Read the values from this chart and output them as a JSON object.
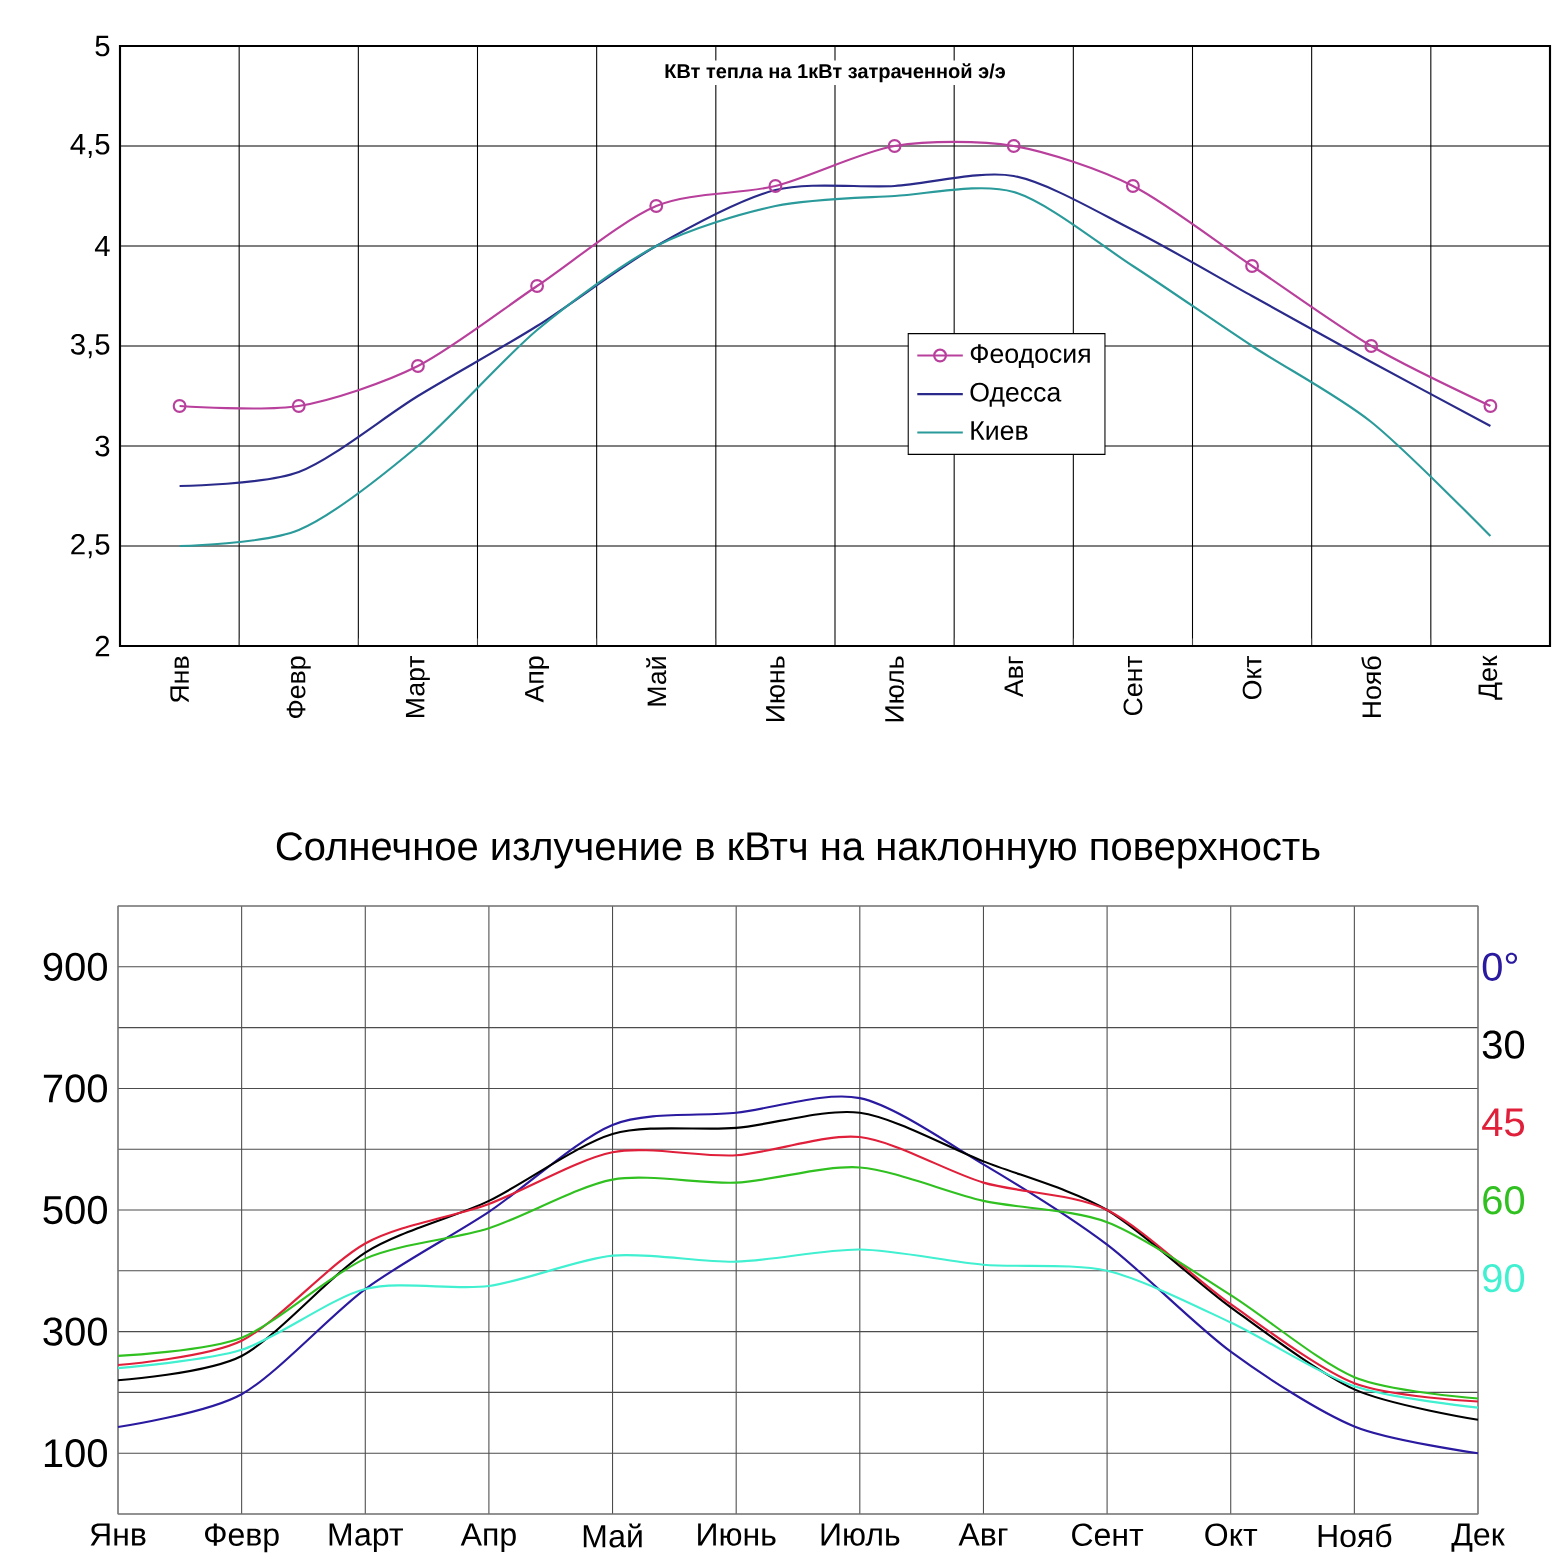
{
  "chart_data": [
    {
      "type": "line",
      "title": "КВт тепла на 1кВт затраченной э/э",
      "categories": [
        "Янв",
        "Февр",
        "Март",
        "Апр",
        "Май",
        "Июнь",
        "Июль",
        "Авг",
        "Сент",
        "Окт",
        "Нояб",
        "Дек"
      ],
      "ylim": [
        2,
        5
      ],
      "yticks": [
        2,
        {
          "value": 2.5,
          "label": "2,5"
        },
        3,
        {
          "value": 3.5,
          "label": "3,5"
        },
        4,
        {
          "value": 4.5,
          "label": "4,5"
        },
        5
      ],
      "grid": true,
      "legend": "center",
      "line_style": "solid",
      "series": [
        {
          "name": "Феодосия",
          "color": "#b8409c",
          "marker": "circle",
          "values": [
            3.2,
            3.2,
            3.4,
            3.8,
            4.2,
            4.3,
            4.5,
            4.5,
            4.3,
            3.9,
            3.5,
            3.2
          ]
        },
        {
          "name": "Одесса",
          "color": "#2a2a8a",
          "values": [
            2.8,
            2.87,
            3.25,
            3.6,
            4.0,
            4.28,
            4.3,
            4.35,
            4.08,
            3.75,
            3.42,
            3.1
          ]
        },
        {
          "name": "Киев",
          "color": "#2a9a9a",
          "values": [
            2.5,
            2.58,
            3.0,
            3.58,
            4.0,
            4.2,
            4.25,
            4.27,
            3.9,
            3.5,
            3.12,
            2.55
          ]
        }
      ]
    },
    {
      "type": "line",
      "title": "Солнечное излучение в кВтч на наклонную поверхность",
      "categories": [
        "Янв",
        "Февр",
        "Март",
        "Апр",
        "Май",
        "Июнь",
        "Июль",
        "Авг",
        "Сент",
        "Окт",
        "Нояб",
        "Дек"
      ],
      "ylim": [
        0,
        1000
      ],
      "yticks": [
        {
          "value": 0,
          "label": null
        },
        100,
        {
          "value": 200,
          "label": null
        },
        300,
        {
          "value": 400,
          "label": null
        },
        500,
        {
          "value": 600,
          "label": null
        },
        700,
        {
          "value": 800,
          "label": null
        },
        900,
        {
          "value": 1000,
          "label": null
        }
      ],
      "grid": true,
      "line_style": "solid",
      "series": [
        {
          "name": "0°",
          "color": "#2a1aa0",
          "values": [
            143,
            197,
            370,
            497,
            640,
            660,
            684,
            575,
            443,
            267,
            144,
            100
          ]
        },
        {
          "name": "30",
          "color": "#000000",
          "values": [
            220,
            260,
            430,
            515,
            625,
            635,
            660,
            580,
            500,
            340,
            205,
            155
          ]
        },
        {
          "name": "45",
          "color": "#e0203a",
          "values": [
            245,
            285,
            445,
            510,
            595,
            590,
            620,
            545,
            500,
            345,
            215,
            185
          ]
        },
        {
          "name": "60",
          "color": "#30c020",
          "values": [
            260,
            290,
            420,
            470,
            550,
            545,
            570,
            515,
            480,
            360,
            225,
            190
          ]
        },
        {
          "name": "90",
          "color": "#40f0d0",
          "values": [
            240,
            270,
            370,
            375,
            425,
            415,
            435,
            410,
            400,
            315,
            210,
            175
          ]
        }
      ]
    }
  ]
}
